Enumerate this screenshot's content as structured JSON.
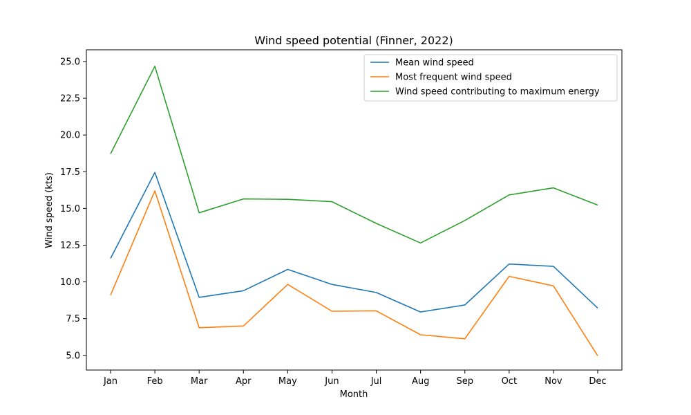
{
  "chart_data": {
    "type": "line",
    "title": "Wind speed potential (Finner, 2022)",
    "xlabel": "Month",
    "ylabel": "Wind speed (kts)",
    "categories": [
      "Jan",
      "Feb",
      "Mar",
      "Apr",
      "May",
      "Jun",
      "Jul",
      "Aug",
      "Sep",
      "Oct",
      "Nov",
      "Dec"
    ],
    "ylim": [
      4.0,
      25.8
    ],
    "yticks": [
      "5.0",
      "7.5",
      "10.0",
      "12.5",
      "15.0",
      "17.5",
      "20.0",
      "22.5",
      "25.0"
    ],
    "grid": false,
    "legend_position": "top-right",
    "series": [
      {
        "name": "Mean wind speed",
        "color": "#1f77b4",
        "values": [
          11.6,
          17.45,
          8.95,
          9.4,
          10.85,
          9.83,
          9.28,
          7.95,
          8.43,
          11.22,
          11.06,
          8.22
        ]
      },
      {
        "name": "Most frequent wind speed",
        "color": "#ff7f0e",
        "values": [
          9.1,
          16.2,
          6.88,
          7.0,
          9.83,
          8.0,
          8.03,
          6.4,
          6.13,
          10.38,
          9.73,
          4.97
        ]
      },
      {
        "name": "Wind speed contributing to maximum energy",
        "color": "#2ca02c",
        "values": [
          18.72,
          24.68,
          14.7,
          15.65,
          15.62,
          15.46,
          13.98,
          12.65,
          14.18,
          15.92,
          16.4,
          15.23
        ]
      }
    ]
  }
}
